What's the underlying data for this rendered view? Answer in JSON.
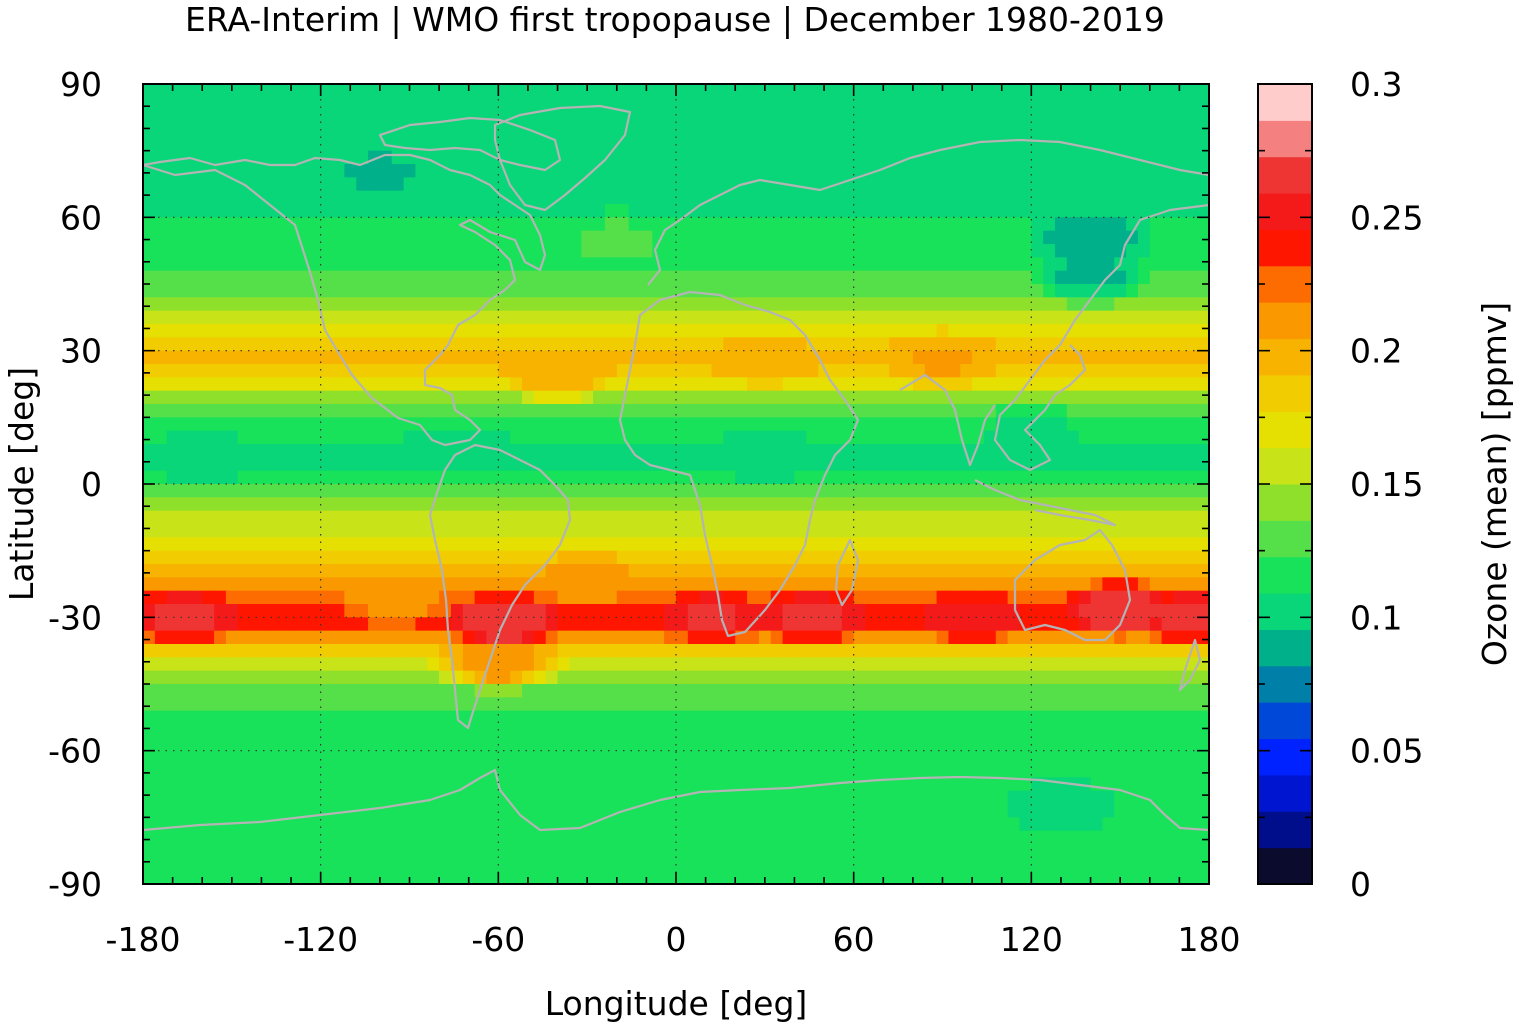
{
  "chart_data": {
    "type": "heatmap",
    "title": "ERA-Interim | WMO first tropopause | December 1980-2019",
    "xlabel": "Longitude [deg]",
    "ylabel": "Latitude [deg]",
    "colorbar_label": "Ozone (mean) [ppmv]",
    "xlim": [
      -180,
      180
    ],
    "ylim": [
      -90,
      90
    ],
    "x_ticks": [
      -180,
      -120,
      -60,
      0,
      60,
      120,
      180
    ],
    "y_ticks": [
      -90,
      -60,
      -30,
      0,
      30,
      60,
      90
    ],
    "grid": true,
    "colorbar": {
      "range": [
        0,
        0.3
      ],
      "ticks": [
        0,
        0.05,
        0.1,
        0.15,
        0.2,
        0.25,
        0.3
      ],
      "tick_labels": [
        "0",
        "0.05",
        "0.1",
        "0.15",
        "0.2",
        "0.25",
        "0.3"
      ],
      "levels": 20,
      "colors": [
        "#0b0b2e",
        "#000e8c",
        "#0015d0",
        "#0022ff",
        "#0048d8",
        "#0080a8",
        "#00b08a",
        "#08d678",
        "#18e25a",
        "#55e04a",
        "#8ee02a",
        "#c8e418",
        "#e6e002",
        "#f0cc00",
        "#f7b300",
        "#fa9800",
        "#fc6c00",
        "#ff1600",
        "#f41a1a",
        "#ef3434",
        "#f48080",
        "#ffcccc"
      ]
    },
    "zonal_profile": {
      "lat": [
        90,
        75,
        60,
        48,
        40,
        35,
        30,
        25,
        20,
        15,
        10,
        5,
        0,
        -5,
        -10,
        -15,
        -20,
        -25,
        -28,
        -30,
        -32,
        -35,
        -40,
        -45,
        -50,
        -55,
        -60,
        -70,
        -80,
        -90
      ],
      "ozone": [
        0.098,
        0.1,
        0.108,
        0.12,
        0.14,
        0.17,
        0.195,
        0.185,
        0.15,
        0.125,
        0.11,
        0.105,
        0.12,
        0.14,
        0.16,
        0.18,
        0.2,
        0.22,
        0.235,
        0.245,
        0.235,
        0.205,
        0.165,
        0.14,
        0.125,
        0.12,
        0.118,
        0.113,
        0.112,
        0.112
      ]
    },
    "features": [
      {
        "lon": -167,
        "lat": -30,
        "ozone": 0.26
      },
      {
        "lon": -58,
        "lat": -31,
        "ozone": 0.27
      },
      {
        "lon": 12,
        "lat": -30,
        "ozone": 0.26
      },
      {
        "lon": 47,
        "lat": -30,
        "ozone": 0.26
      },
      {
        "lon": 100,
        "lat": -30,
        "ozone": 0.25
      },
      {
        "lon": 150,
        "lat": -28,
        "ozone": 0.27
      },
      {
        "lon": 175,
        "lat": -30,
        "ozone": 0.26
      },
      {
        "lon": -30,
        "lat": -22,
        "ozone": 0.215
      },
      {
        "lon": -60,
        "lat": -40,
        "ozone": 0.215
      },
      {
        "lon": -95,
        "lat": -26,
        "ozone": 0.215
      },
      {
        "lon": 90,
        "lat": 28,
        "ozone": 0.205
      },
      {
        "lon": 30,
        "lat": 28,
        "ozone": 0.2
      },
      {
        "lon": -40,
        "lat": 25,
        "ozone": 0.2
      },
      {
        "lon": 140,
        "lat": 55,
        "ozone": 0.085
      },
      {
        "lon": 140,
        "lat": 47,
        "ozone": 0.095
      },
      {
        "lon": -100,
        "lat": 70,
        "ozone": 0.095
      },
      {
        "lon": -20,
        "lat": 55,
        "ozone": 0.125
      },
      {
        "lon": 30,
        "lat": 6,
        "ozone": 0.1
      },
      {
        "lon": -75,
        "lat": 8,
        "ozone": 0.1
      },
      {
        "lon": -160,
        "lat": 6,
        "ozone": 0.1
      },
      {
        "lon": 120,
        "lat": 12,
        "ozone": 0.105
      },
      {
        "lon": 130,
        "lat": -72,
        "ozone": 0.098
      }
    ]
  }
}
